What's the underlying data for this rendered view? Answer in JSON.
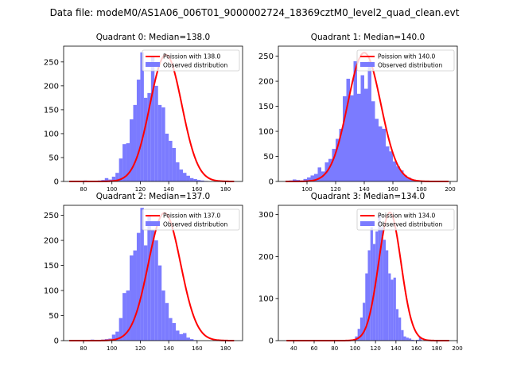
{
  "figure_title": "Data file: modeM0/AS1A06_006T01_9000002724_18369cztM0_level2_quad_clean.evt",
  "colors": {
    "poisson": "#ff0000",
    "histogram": "#7b7bff",
    "axis": "#000000"
  },
  "chart_data": [
    {
      "type": "bar+line",
      "title": "Quadrant 0: Median=138.0",
      "legend": [
        "Poission with 138.0",
        "Observed distribution"
      ],
      "legend_position": "top-right",
      "xlim": [
        66,
        192
      ],
      "ylim": [
        0,
        283
      ],
      "xticks": [
        80,
        100,
        120,
        140,
        160,
        180
      ],
      "yticks": [
        0,
        50,
        100,
        150,
        200,
        250
      ],
      "hist": {
        "bin_start": 70,
        "bin_width": 2.5,
        "values": [
          1,
          0,
          1,
          0,
          2,
          0,
          1,
          1,
          2,
          3,
          7,
          4,
          10,
          18,
          48,
          78,
          80,
          130,
          160,
          213,
          270,
          175,
          185,
          260,
          200,
          160,
          155,
          100,
          85,
          70,
          40,
          25,
          18,
          12,
          7,
          5,
          3,
          2,
          1
        ]
      },
      "poisson_mean": 138.0,
      "poisson_peak": 265,
      "poisson_sigma": 11.2,
      "poisson_xrange": [
        70,
        186
      ]
    },
    {
      "type": "bar+line",
      "title": "Quadrant 1: Median=140.0",
      "legend": [
        "Poission with 140.0",
        "Observed distribution"
      ],
      "legend_position": "top-right",
      "xlim": [
        80,
        205
      ],
      "ylim": [
        0,
        270
      ],
      "xticks": [
        100,
        120,
        140,
        160,
        180,
        200
      ],
      "yticks": [
        0,
        50,
        100,
        150,
        200,
        250
      ],
      "hist": {
        "bin_start": 85,
        "bin_width": 2.5,
        "values": [
          1,
          2,
          4,
          3,
          2,
          5,
          8,
          12,
          15,
          28,
          20,
          38,
          45,
          65,
          85,
          105,
          170,
          205,
          172,
          240,
          175,
          212,
          185,
          240,
          160,
          125,
          110,
          105,
          70,
          60,
          40,
          30,
          22,
          12,
          8,
          4,
          2,
          1,
          1,
          0,
          0,
          0,
          0,
          0,
          1
        ]
      },
      "poisson_mean": 140.0,
      "poisson_peak": 257,
      "poisson_sigma": 11.5,
      "poisson_xrange": [
        85,
        199
      ]
    },
    {
      "type": "bar+line",
      "title": "Quadrant 2: Median=137.0",
      "legend": [
        "Poission with 137.0",
        "Observed distribution"
      ],
      "legend_position": "top-right",
      "xlim": [
        66,
        192
      ],
      "ylim": [
        0,
        270
      ],
      "xticks": [
        80,
        100,
        120,
        140,
        160,
        180
      ],
      "yticks": [
        0,
        50,
        100,
        150,
        200,
        250
      ],
      "hist": {
        "bin_start": 70,
        "bin_width": 2.5,
        "values": [
          1,
          0,
          0,
          1,
          0,
          1,
          2,
          0,
          1,
          2,
          3,
          4,
          12,
          18,
          45,
          95,
          100,
          170,
          180,
          215,
          265,
          190,
          250,
          220,
          200,
          150,
          100,
          75,
          45,
          35,
          20,
          13,
          15,
          6,
          3,
          1
        ]
      },
      "poisson_mean": 137.0,
      "poisson_peak": 255,
      "poisson_sigma": 11.3,
      "poisson_xrange": [
        70,
        186
      ]
    },
    {
      "type": "bar+line",
      "title": "Quadrant 3: Median=134.0",
      "legend": [
        "Poission with 134.0",
        "Observed distribution"
      ],
      "legend_position": "top-right",
      "xlim": [
        25,
        200
      ],
      "ylim": [
        0,
        322
      ],
      "xticks": [
        40,
        60,
        80,
        100,
        120,
        140,
        160,
        180,
        200
      ],
      "yticks": [
        0,
        100,
        200,
        300
      ],
      "hist": {
        "bin_start": 100,
        "bin_width": 2.5,
        "values": [
          10,
          28,
          55,
          90,
          160,
          215,
          270,
          230,
          260,
          300,
          270,
          240,
          215,
          160,
          145,
          150,
          75,
          55,
          25,
          10,
          7,
          5,
          2,
          1,
          2,
          8,
          1
        ]
      },
      "poisson_mean": 134.0,
      "poisson_peak": 305,
      "poisson_sigma": 11.0,
      "poisson_xrange": [
        33,
        192
      ]
    }
  ]
}
